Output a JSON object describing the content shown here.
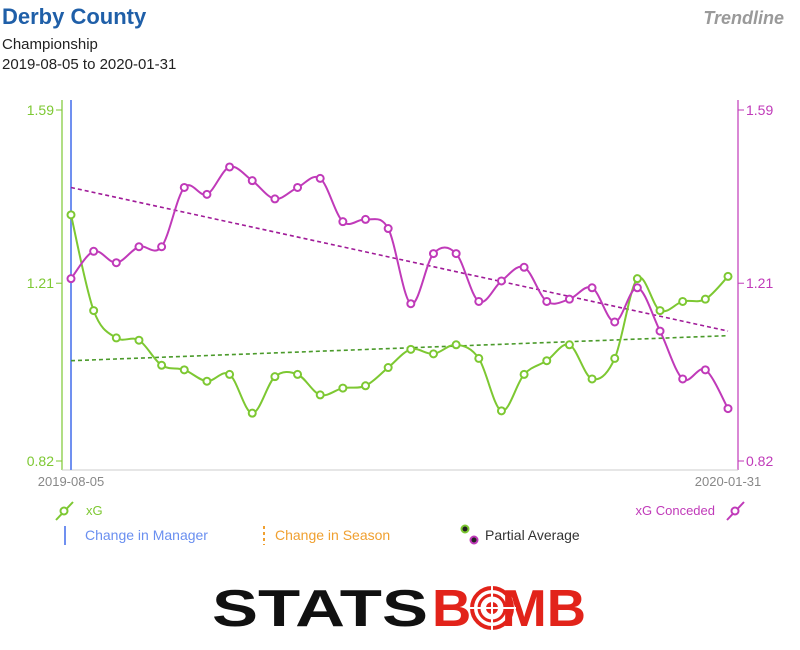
{
  "header": {
    "team": "Derby County",
    "competition": "Championship",
    "date_range": "2019-08-05 to 2020-01-31",
    "mode_label": "Trendline"
  },
  "legend": {
    "xg": "xG",
    "xg_conceded": "xG Conceded",
    "change_manager": "Change in Manager",
    "change_season": "Change in Season",
    "partial_average": "Partial Average"
  },
  "brand": {
    "logo_text": "STATSBOMB"
  },
  "colors": {
    "xg": "#7dc832",
    "xg_conceded": "#c03ab9",
    "trend_xg": "#4a9a2a",
    "trend_xgc": "#a01a98",
    "manager_line": "#7090f0",
    "season_line": "#f0a030",
    "team_title": "#1f5fa8"
  },
  "chart_data": {
    "type": "line",
    "x_start_label": "2019-08-05",
    "x_end_label": "2020-01-31",
    "ylim": [
      0.82,
      1.59
    ],
    "yticks": [
      "0.82",
      "1.21",
      "1.59"
    ],
    "series": [
      {
        "name": "xG",
        "values": [
          1.36,
          1.15,
          1.09,
          1.085,
          1.03,
          1.02,
          0.995,
          1.01,
          0.925,
          1.005,
          1.01,
          0.965,
          0.98,
          0.985,
          1.025,
          1.065,
          1.055,
          1.075,
          1.045,
          0.93,
          1.01,
          1.04,
          1.075,
          1.0,
          1.045,
          1.22,
          1.15,
          1.17,
          1.175,
          1.225
        ]
      },
      {
        "name": "xG Conceded",
        "values": [
          1.22,
          1.28,
          1.255,
          1.29,
          1.29,
          1.42,
          1.405,
          1.465,
          1.435,
          1.395,
          1.42,
          1.44,
          1.345,
          1.35,
          1.33,
          1.165,
          1.275,
          1.275,
          1.17,
          1.215,
          1.245,
          1.17,
          1.175,
          1.2,
          1.125,
          1.2,
          1.105,
          1.0,
          1.02,
          0.935
        ]
      }
    ],
    "trendlines": [
      {
        "series": "xG",
        "start": 1.04,
        "end": 1.095
      },
      {
        "series": "xG Conceded",
        "start": 1.42,
        "end": 1.105
      }
    ],
    "manager_change_index": 0
  }
}
